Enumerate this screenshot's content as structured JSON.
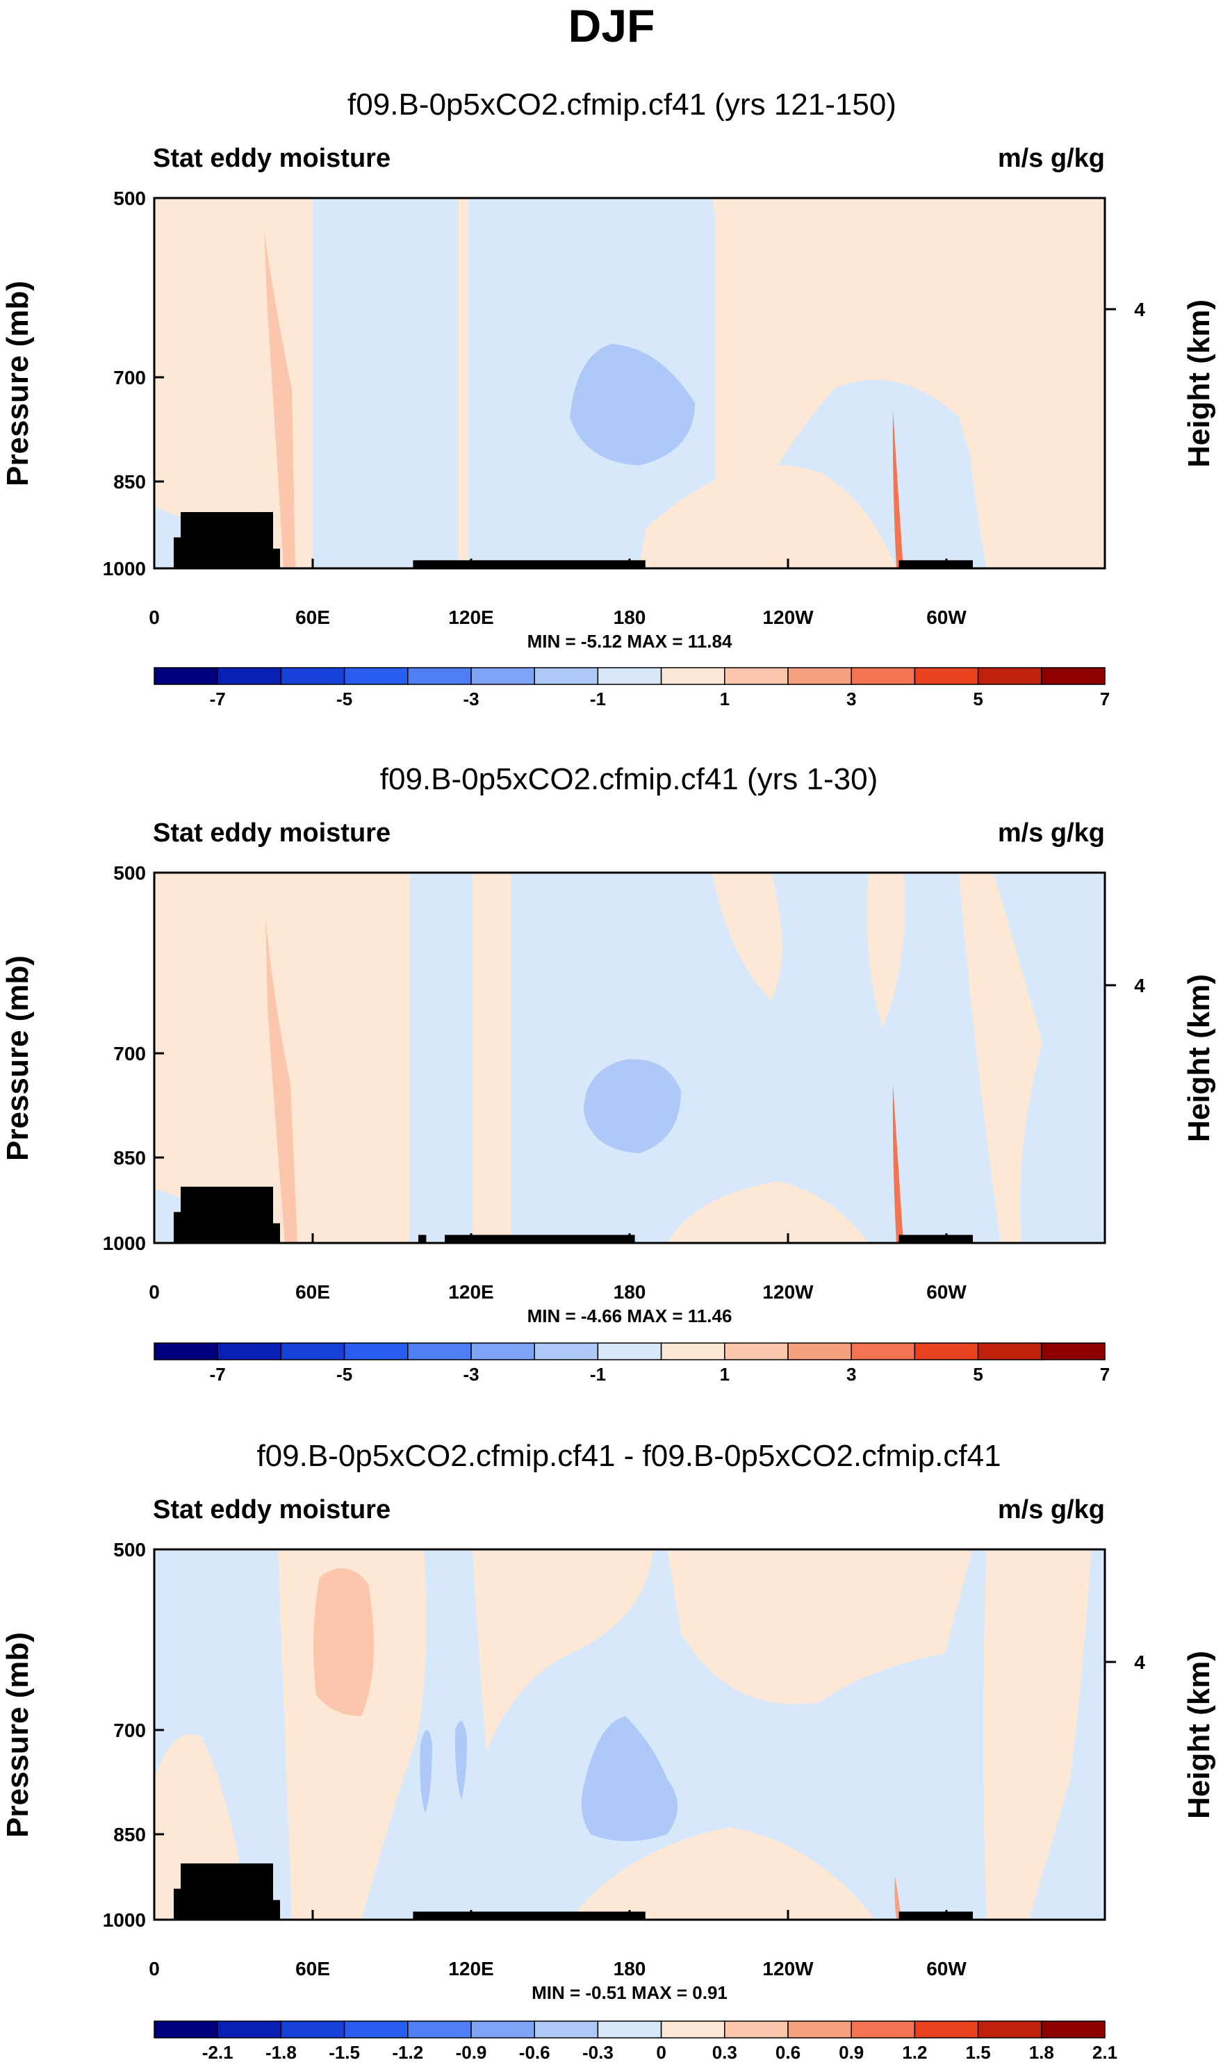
{
  "figure_title": "DJF",
  "colors": {
    "frame": "#000000",
    "land": "#000000",
    "palette": [
      "#00007f",
      "#0a1fb6",
      "#1540da",
      "#2a5ef0",
      "#4d7ff2",
      "#7ea3f4",
      "#aec8f7",
      "#d8e8fb",
      "#fde8d6",
      "#fbc6ab",
      "#f6a07f",
      "#f27450",
      "#e8421f",
      "#c0210c",
      "#8c0000"
    ]
  },
  "chart_data": [
    {
      "type": "contour",
      "title": "f09.B-0p5xCO2.cfmip.cf41 (yrs 121-150)",
      "left_label": "Stat eddy moisture",
      "right_label": "m/s g/kg",
      "ylabel": "Pressure (mb)",
      "ylabel_right": "Height (km)",
      "yticks": [
        500,
        700,
        850,
        1000
      ],
      "yticks_right": [
        4
      ],
      "ylim": [
        500,
        1000
      ],
      "xticks": [
        "0",
        "60E",
        "120E",
        "180",
        "120W",
        "60W"
      ],
      "xlim_deg": [
        0,
        360
      ],
      "minmax": "MIN = -5.12  MAX = 11.84",
      "colorbar_labels": [
        "-7",
        "-5",
        "-3",
        "-1",
        "1",
        "3",
        "5",
        "7"
      ],
      "colorbar_levels": [
        -7,
        -6,
        -5,
        -4,
        -3,
        -2,
        -1,
        0,
        1,
        2,
        3,
        4,
        5,
        6,
        7
      ],
      "land": [
        {
          "lon": [
            10,
            45
          ],
          "p_top": 900
        },
        {
          "lon": [
            98,
            186
          ],
          "p_top": 985
        },
        {
          "lon": [
            282,
            310
          ],
          "p_top": 985
        }
      ]
    },
    {
      "type": "contour",
      "title": "f09.B-0p5xCO2.cfmip.cf41 (yrs 1-30)",
      "left_label": "Stat eddy moisture",
      "right_label": "m/s g/kg",
      "ylabel": "Pressure (mb)",
      "ylabel_right": "Height (km)",
      "yticks": [
        500,
        700,
        850,
        1000
      ],
      "yticks_right": [
        4
      ],
      "ylim": [
        500,
        1000
      ],
      "xticks": [
        "0",
        "60E",
        "120E",
        "180",
        "120W",
        "60W"
      ],
      "xlim_deg": [
        0,
        360
      ],
      "minmax": "MIN = -4.66  MAX = 11.46",
      "colorbar_labels": [
        "-7",
        "-5",
        "-3",
        "-1",
        "1",
        "3",
        "5",
        "7"
      ],
      "colorbar_levels": [
        -7,
        -6,
        -5,
        -4,
        -3,
        -2,
        -1,
        0,
        1,
        2,
        3,
        4,
        5,
        6,
        7
      ],
      "land": [
        {
          "lon": [
            10,
            45
          ],
          "p_top": 900
        },
        {
          "lon": [
            100,
            103
          ],
          "p_top": 985
        },
        {
          "lon": [
            110,
            182
          ],
          "p_top": 985
        },
        {
          "lon": [
            282,
            310
          ],
          "p_top": 985
        }
      ]
    },
    {
      "type": "contour",
      "title": "f09.B-0p5xCO2.cfmip.cf41 - f09.B-0p5xCO2.cfmip.cf41",
      "left_label": "Stat eddy moisture",
      "right_label": "m/s g/kg",
      "ylabel": "Pressure (mb)",
      "ylabel_right": "Height (km)",
      "yticks": [
        500,
        700,
        850,
        1000
      ],
      "yticks_right": [
        4
      ],
      "ylim": [
        500,
        1000
      ],
      "xticks": [
        "0",
        "60E",
        "120E",
        "180",
        "120W",
        "60W"
      ],
      "xlim_deg": [
        0,
        360
      ],
      "minmax": "MIN = -0.51  MAX =  0.91",
      "colorbar_labels": [
        "-2.1",
        "-1.8",
        "-1.5",
        "-1.2",
        "-0.9",
        "-0.6",
        "-0.3",
        "0",
        "0.3",
        "0.6",
        "0.9",
        "1.2",
        "1.5",
        "1.8",
        "2.1"
      ],
      "colorbar_levels": [
        -2.1,
        -1.8,
        -1.5,
        -1.2,
        -0.9,
        -0.6,
        -0.3,
        0,
        0.3,
        0.6,
        0.9,
        1.2,
        1.5,
        1.8,
        2.1
      ],
      "land": [
        {
          "lon": [
            10,
            45
          ],
          "p_top": 900
        },
        {
          "lon": [
            98,
            186
          ],
          "p_top": 985
        },
        {
          "lon": [
            282,
            310
          ],
          "p_top": 985
        }
      ]
    }
  ]
}
